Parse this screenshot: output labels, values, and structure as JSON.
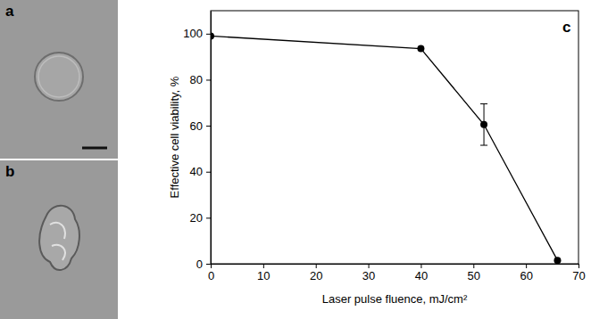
{
  "chart_data": {
    "type": "line",
    "panel_labels": [
      "a",
      "b",
      "c"
    ],
    "x_label": "Laser pulse fluence, mJ/cm²",
    "y_label": "Effective cell viability, %",
    "x": [
      0,
      40,
      52,
      66
    ],
    "values": [
      99,
      93.5,
      60.5,
      1.5
    ],
    "errors": [
      null,
      null,
      9,
      null
    ],
    "xlim": [
      0,
      70
    ],
    "xticks": [
      0,
      10,
      20,
      30,
      40,
      50,
      60,
      70
    ],
    "ylim": [
      0,
      110
    ],
    "yticks": [
      0,
      20,
      40,
      60,
      80,
      100
    ],
    "color": "#000000",
    "marker": "circle",
    "line_style": "solid"
  }
}
